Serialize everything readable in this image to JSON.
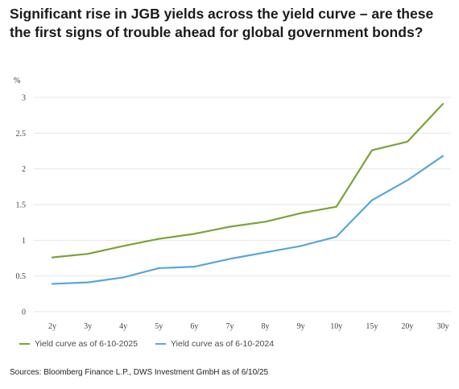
{
  "title": "Significant rise in JGB yields across the yield curve – are these the first signs of trouble ahead for global government bonds?",
  "source": "Sources: Bloomberg Finance L.P., DWS Investment GmbH as of 6/10/25",
  "chart_data": {
    "type": "line",
    "ylabel": "%",
    "ylim": [
      0,
      3
    ],
    "yticks": [
      "0",
      "0.5",
      "1",
      "1.5",
      "2",
      "2.5",
      "3"
    ],
    "grid": "horizontal",
    "legend_position": "bottom-left",
    "categories": [
      "2y",
      "3y",
      "4y",
      "5y",
      "6y",
      "7y",
      "8y",
      "9y",
      "10y",
      "15y",
      "20y",
      "30y"
    ],
    "series": [
      {
        "name": "Yield curve as of 6-10-2025",
        "color": "#7aa33a",
        "values": [
          0.76,
          0.81,
          0.92,
          1.02,
          1.09,
          1.19,
          1.26,
          1.38,
          1.47,
          2.26,
          2.38,
          2.91
        ]
      },
      {
        "name": "Yield curve as of 6-10-2024",
        "color": "#5aa6d6",
        "values": [
          0.39,
          0.41,
          0.48,
          0.61,
          0.63,
          0.74,
          0.83,
          0.92,
          1.05,
          1.56,
          1.84,
          2.18
        ]
      }
    ]
  }
}
